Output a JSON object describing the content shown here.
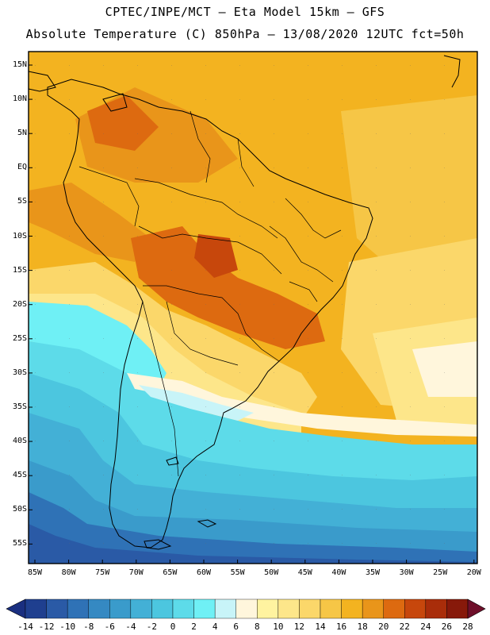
{
  "header": {
    "line1": "CPTEC/INPE/MCT –  Eta Model 15km – GFS",
    "line2": "Absolute Temperature (C) 850hPa – 13/08/2020 12UTC fct=50h"
  },
  "map": {
    "lat_labels": [
      "15N",
      "10N",
      "5N",
      "EQ",
      "5S",
      "10S",
      "15S",
      "20S",
      "25S",
      "30S",
      "35S",
      "40S",
      "45S",
      "50S",
      "55S"
    ],
    "lon_labels": [
      "85W",
      "80W",
      "75W",
      "70W",
      "65W",
      "60W",
      "55W",
      "50W",
      "45W",
      "40W",
      "35W",
      "30W",
      "25W",
      "20W"
    ]
  },
  "colorbar": {
    "labels": [
      "-14",
      "-12",
      "-10",
      "-8",
      "-6",
      "-4",
      "-2",
      "0",
      "2",
      "4",
      "6",
      "8",
      "10",
      "12",
      "14",
      "16",
      "18",
      "20",
      "22",
      "24",
      "26",
      "28"
    ],
    "colors": [
      "#1f3f8f",
      "#2a5aa6",
      "#2f72b6",
      "#3589c2",
      "#3a9bcb",
      "#43b0d6",
      "#4cc6df",
      "#5ddbe9",
      "#6ff0f5",
      "#c8f4f8",
      "#fff6dc",
      "#fff3a0",
      "#fde68a",
      "#fbd76a",
      "#f6c646",
      "#f3b320",
      "#e9951a",
      "#dd6a10",
      "#c7470c",
      "#a92d0a",
      "#87190a"
    ],
    "end_left_color": "#1a2f80",
    "end_right_color": "#6e0f2a"
  }
}
